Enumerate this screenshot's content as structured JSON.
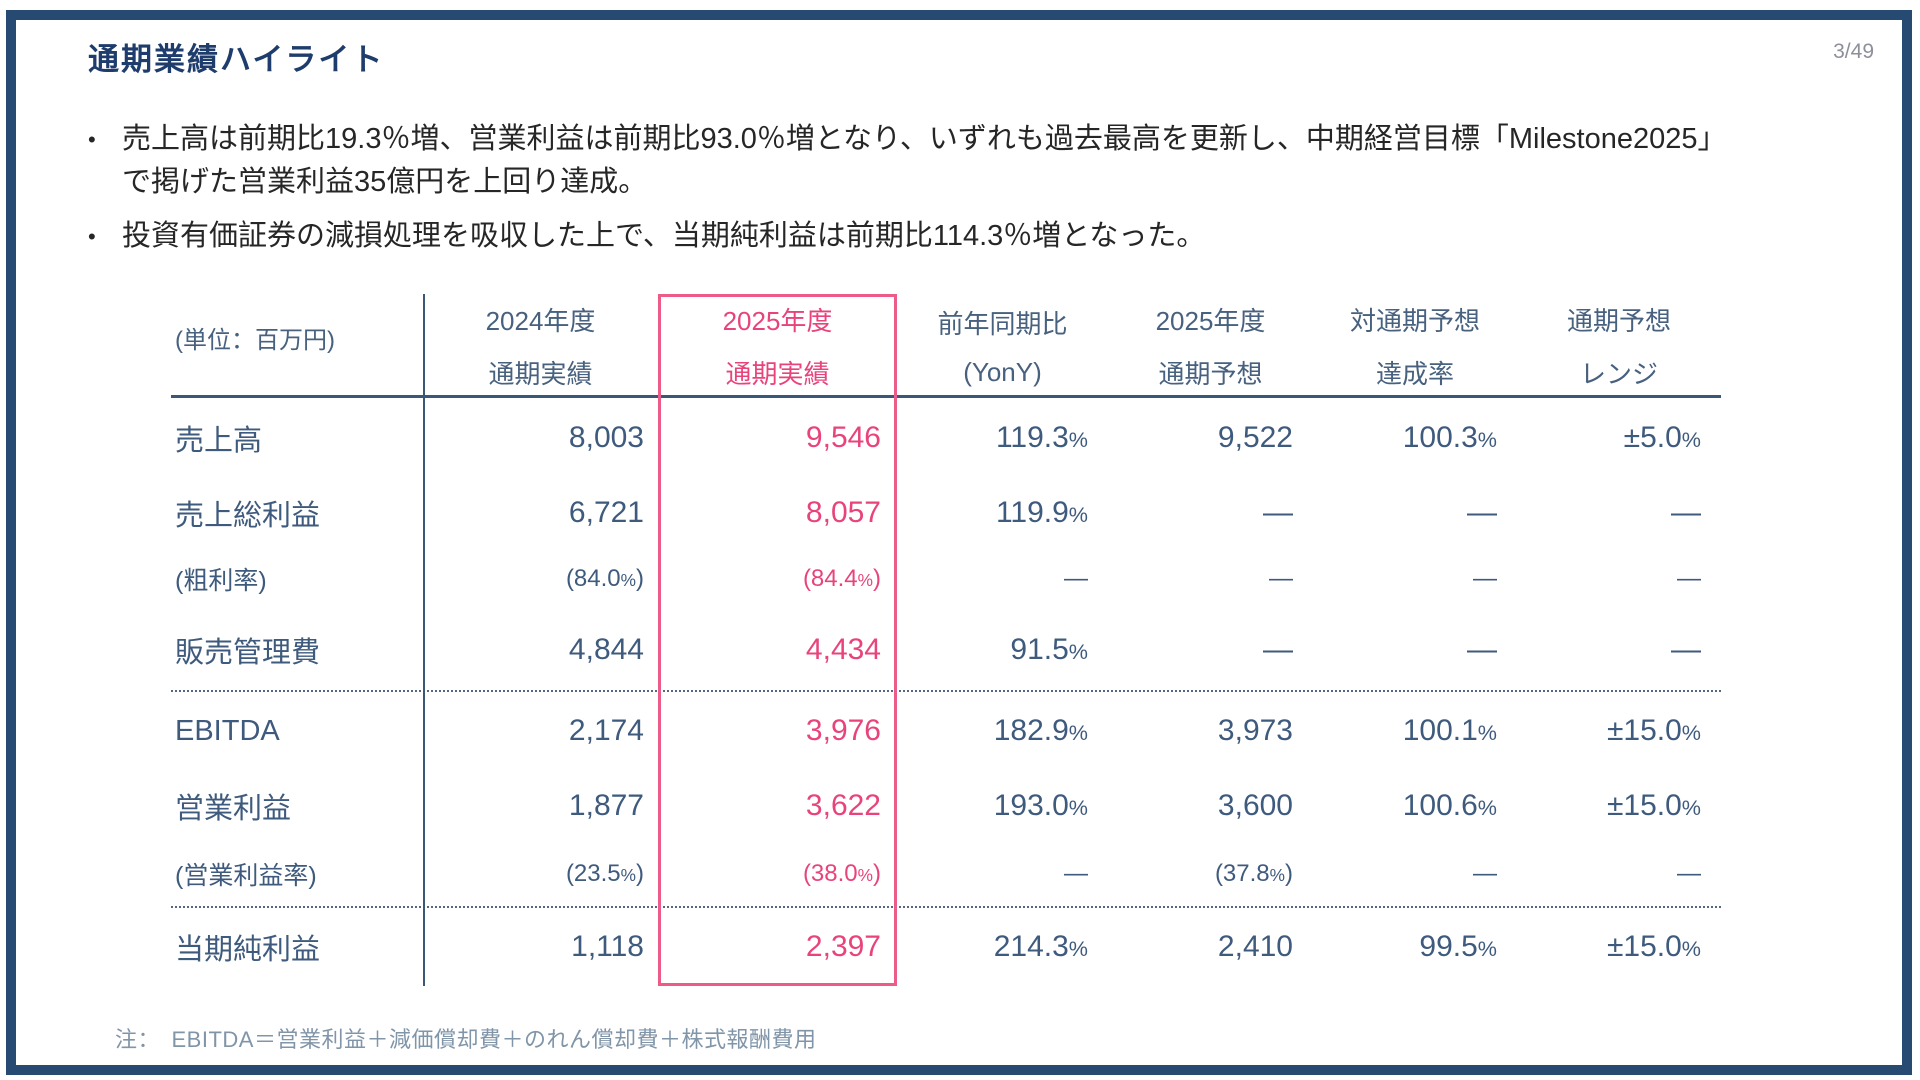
{
  "page": {
    "title": "通期業績ハイライト",
    "page_number": "3/49",
    "bullet_marker": "•"
  },
  "colors": {
    "frame_navy": "#274a73",
    "title_navy": "#1e3c6c",
    "table_navy": "#3e5a7d",
    "accent_pink": "#e8437c",
    "pink_box_border": "#ed5b89",
    "body_text": "#262626",
    "note_text": "#8195a9",
    "page_number_gray": "#8d9099"
  },
  "bullets": [
    "売上高は前期比19.3％増、営業利益は前期比93.0％増となり、いずれも過去最高を更新し、中期経営目標「Milestone2025」で掲げた営業利益35億円を上回り達成。",
    "投資有価証券の減損処理を吸収した上で、当期純利益は前期比114.3％増となった。"
  ],
  "table": {
    "unit_label": "(単位：百万円)",
    "columns": [
      {
        "line1": "2024年度",
        "line2": "通期実績",
        "highlight": false
      },
      {
        "line1": "2025年度",
        "line2": "通期実績",
        "highlight": true
      },
      {
        "line1": "前年同期比",
        "line2": "(YonY)",
        "highlight": false
      },
      {
        "line1": "2025年度",
        "line2": "通期予想",
        "highlight": false
      },
      {
        "line1": "対通期予想",
        "line2": "達成率",
        "highlight": false
      },
      {
        "line1": "通期予想",
        "line2": "レンジ",
        "highlight": false
      }
    ],
    "rows": [
      {
        "label": "売上高",
        "sub": false,
        "separator_before": false,
        "values": [
          "8,003",
          "9,546",
          "119.3%",
          "9,522",
          "100.3%",
          "±5.0%"
        ]
      },
      {
        "label": "売上総利益",
        "sub": false,
        "separator_before": false,
        "values": [
          "6,721",
          "8,057",
          "119.9%",
          "—",
          "—",
          "—"
        ]
      },
      {
        "label": "(粗利率)",
        "sub": true,
        "separator_before": false,
        "values": [
          "(84.0%)",
          "(84.4%)",
          "—",
          "—",
          "—",
          "—"
        ]
      },
      {
        "label": "販売管理費",
        "sub": false,
        "separator_before": false,
        "values": [
          "4,844",
          "4,434",
          "91.5%",
          "—",
          "—",
          "—"
        ]
      },
      {
        "label": "EBITDA",
        "sub": false,
        "separator_before": true,
        "values": [
          "2,174",
          "3,976",
          "182.9%",
          "3,973",
          "100.1%",
          "±15.0%"
        ]
      },
      {
        "label": "営業利益",
        "sub": false,
        "separator_before": false,
        "values": [
          "1,877",
          "3,622",
          "193.0%",
          "3,600",
          "100.6%",
          "±15.0%"
        ]
      },
      {
        "label": "(営業利益率)",
        "sub": true,
        "separator_before": false,
        "values": [
          "(23.5%)",
          "(38.0%)",
          "—",
          "(37.8%)",
          "—",
          "—"
        ]
      },
      {
        "label": "当期純利益",
        "sub": false,
        "separator_before": true,
        "values": [
          "1,118",
          "2,397",
          "214.3%",
          "2,410",
          "99.5%",
          "±15.0%"
        ]
      }
    ]
  },
  "note": "注：　EBITDA＝営業利益＋減価償却費＋のれん償却費＋株式報酬費用"
}
